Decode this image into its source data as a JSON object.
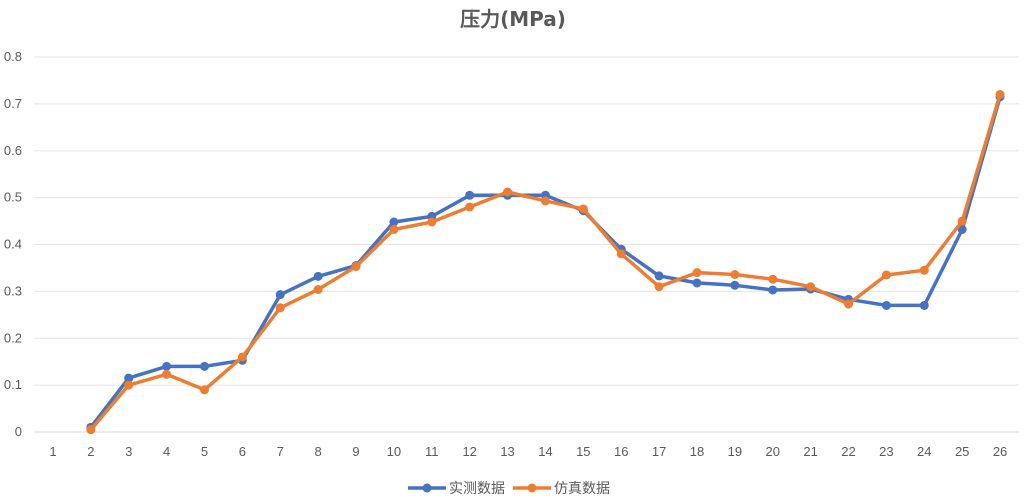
{
  "chart_data": {
    "type": "line",
    "title": "压力(MPa)",
    "categories": [
      "1",
      "2",
      "3",
      "4",
      "5",
      "6",
      "7",
      "8",
      "9",
      "10",
      "11",
      "12",
      "13",
      "14",
      "15",
      "16",
      "17",
      "18",
      "19",
      "20",
      "21",
      "22",
      "23",
      "24",
      "25",
      "26"
    ],
    "ylim": [
      0,
      0.8
    ],
    "yticks": [
      0,
      0.1,
      0.2,
      0.3,
      0.4,
      0.5,
      0.6,
      0.7,
      0.8
    ],
    "ytick_labels": [
      "0",
      "0.1",
      "0.2",
      "0.3",
      "0.4",
      "0.5",
      "0.6",
      "0.7",
      "0.8"
    ],
    "grid": true,
    "legend_position": "bottom",
    "series": [
      {
        "name": "实测数据",
        "color": "#4472C4",
        "values": [
          null,
          0.01,
          0.115,
          0.14,
          0.14,
          0.153,
          0.293,
          0.332,
          0.355,
          0.448,
          0.46,
          0.505,
          0.505,
          0.505,
          0.472,
          0.39,
          0.333,
          0.318,
          0.313,
          0.303,
          0.305,
          0.283,
          0.27,
          0.27,
          0.432,
          0.715
        ]
      },
      {
        "name": "仿真数据",
        "color": "#ED7D31",
        "values": [
          null,
          0.005,
          0.1,
          0.123,
          0.09,
          0.16,
          0.265,
          0.304,
          0.353,
          0.432,
          0.448,
          0.48,
          0.512,
          0.493,
          0.476,
          0.38,
          0.31,
          0.34,
          0.336,
          0.326,
          0.31,
          0.273,
          0.335,
          0.345,
          0.45,
          0.72
        ]
      }
    ]
  }
}
